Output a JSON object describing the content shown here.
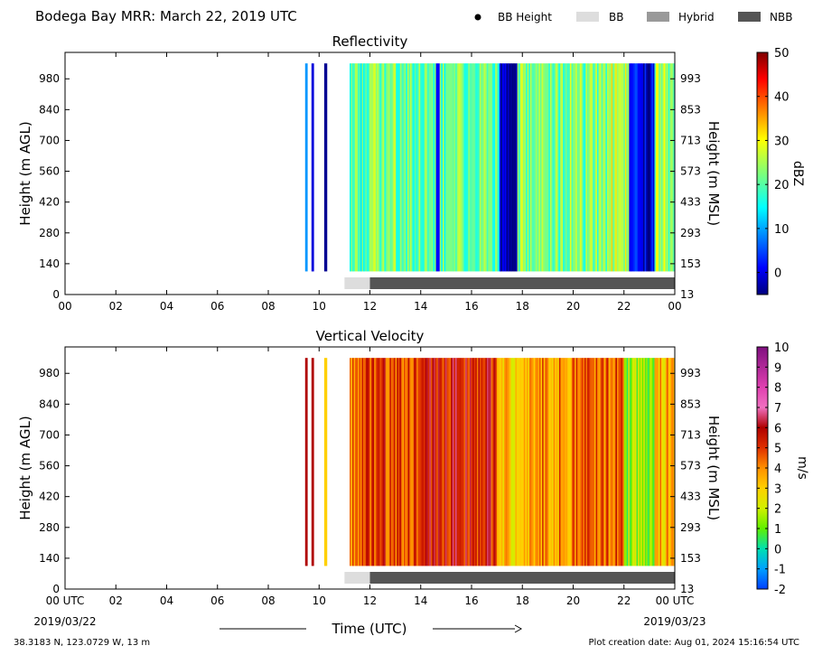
{
  "header": {
    "title": "Bodega Bay MRR:  March 22, 2019 UTC",
    "legend": [
      {
        "label": "BB Height",
        "symbol": "dot",
        "color": "#000000"
      },
      {
        "label": "BB",
        "symbol": "box",
        "color": "#dddddd"
      },
      {
        "label": "Hybrid",
        "symbol": "box",
        "color": "#999999"
      },
      {
        "label": "NBB",
        "symbol": "box",
        "color": "#555555"
      }
    ]
  },
  "footer": {
    "location": "38.3183 N, 123.0729 W, 13 m",
    "creation": "Plot creation date: Aug 01, 2024 15:16:54 UTC",
    "xlabel": "Time (UTC)",
    "start_date": "2019/03/22",
    "end_date": "2019/03/23"
  },
  "chart_data": [
    {
      "type": "heatmap",
      "title": "Reflectivity",
      "ylabel": "Height (m AGL)",
      "ylabel_right": "Height (m MSL)",
      "colorbar_label": "dBZ",
      "colorbar_ticks": [
        "0",
        "10",
        "20",
        "30",
        "40",
        "50"
      ],
      "colorbar_range": [
        -5,
        50
      ],
      "colormap": "jet",
      "x_ticks": [
        "00",
        "02",
        "04",
        "06",
        "08",
        "10",
        "12",
        "14",
        "16",
        "18",
        "20",
        "22",
        "00"
      ],
      "x_range_hours": [
        0,
        24
      ],
      "y_ticks_left": [
        "0",
        "140",
        "280",
        "420",
        "560",
        "700",
        "840",
        "980"
      ],
      "y_ticks_right": [
        "13",
        "153",
        "293",
        "433",
        "573",
        "713",
        "853",
        "993"
      ],
      "y_range": [
        0,
        1100
      ],
      "data_height_range": [
        105,
        1050
      ],
      "strips": [
        {
          "start": 9.45,
          "end": 9.55,
          "value": 10
        },
        {
          "start": 9.7,
          "end": 9.8,
          "value": 0
        },
        {
          "start": 10.2,
          "end": 10.32,
          "value": -4
        },
        {
          "start": 11.2,
          "end": 12.0,
          "value": 20
        },
        {
          "start": 12.0,
          "end": 14.6,
          "value": 22
        },
        {
          "start": 14.6,
          "end": 14.75,
          "value": 2
        },
        {
          "start": 14.75,
          "end": 17.1,
          "value": 21
        },
        {
          "start": 17.1,
          "end": 17.8,
          "value": -3
        },
        {
          "start": 17.8,
          "end": 21.5,
          "value": 22
        },
        {
          "start": 21.5,
          "end": 22.2,
          "value": 26
        },
        {
          "start": 22.2,
          "end": 23.2,
          "value": 0
        },
        {
          "start": 23.2,
          "end": 24.0,
          "value": 24
        }
      ],
      "bb_bar": [
        {
          "start": 11.0,
          "end": 12.0,
          "type": "BB"
        },
        {
          "start": 12.0,
          "end": 24.0,
          "type": "NBB"
        }
      ]
    },
    {
      "type": "heatmap",
      "title": "Vertical Velocity",
      "ylabel": "Height (m AGL)",
      "ylabel_right": "Height (m MSL)",
      "colorbar_label": "m/s",
      "colorbar_ticks": [
        "-2",
        "-1",
        "0",
        "1",
        "2",
        "3",
        "4",
        "5",
        "6",
        "7",
        "8",
        "9",
        "10"
      ],
      "colorbar_range": [
        -2,
        10
      ],
      "colormap": "velocity",
      "x_ticks": [
        "00 UTC",
        "02",
        "04",
        "06",
        "08",
        "10",
        "12",
        "14",
        "16",
        "18",
        "20",
        "22",
        "00 UTC"
      ],
      "x_range_hours": [
        0,
        24
      ],
      "y_ticks_left": [
        "0",
        "140",
        "280",
        "420",
        "560",
        "700",
        "840",
        "980"
      ],
      "y_ticks_right": [
        "13",
        "153",
        "293",
        "433",
        "573",
        "713",
        "853",
        "993"
      ],
      "y_range": [
        0,
        1100
      ],
      "data_height_range": [
        105,
        1050
      ],
      "strips": [
        {
          "start": 9.45,
          "end": 9.55,
          "value": 6
        },
        {
          "start": 9.7,
          "end": 9.8,
          "value": 6
        },
        {
          "start": 10.2,
          "end": 10.32,
          "value": 3
        },
        {
          "start": 11.2,
          "end": 12.0,
          "value": 4.5
        },
        {
          "start": 12.0,
          "end": 14.0,
          "value": 5
        },
        {
          "start": 14.0,
          "end": 17.0,
          "value": 5.5
        },
        {
          "start": 17.0,
          "end": 18.0,
          "value": 3
        },
        {
          "start": 18.0,
          "end": 20.0,
          "value": 4
        },
        {
          "start": 20.0,
          "end": 22.0,
          "value": 4.5
        },
        {
          "start": 22.0,
          "end": 23.2,
          "value": 1.5
        },
        {
          "start": 23.2,
          "end": 24.0,
          "value": 3.5
        }
      ],
      "bb_bar": [
        {
          "start": 11.0,
          "end": 12.0,
          "type": "BB"
        },
        {
          "start": 12.0,
          "end": 24.0,
          "type": "NBB"
        }
      ]
    }
  ]
}
